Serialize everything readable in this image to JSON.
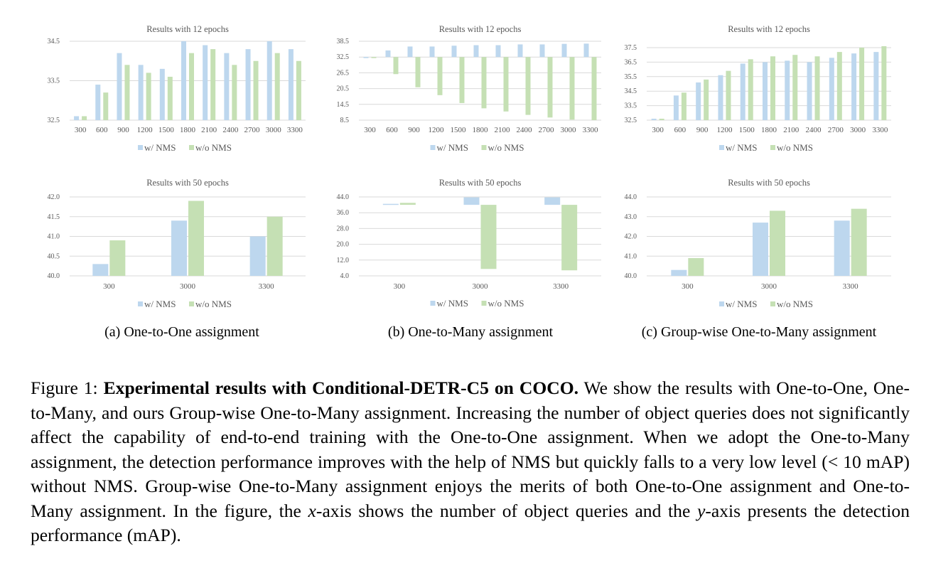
{
  "colors": {
    "nms": "#bdd7ee",
    "no_nms": "#c5e0b4",
    "grid": "#d9d9d9",
    "axis_text": "#595959"
  },
  "chart_data": [
    {
      "id": "a-12",
      "type": "bar",
      "title": "Results with 12 epochs",
      "categories": [
        "300",
        "600",
        "900",
        "1200",
        "1500",
        "1800",
        "2100",
        "2400",
        "2700",
        "3000",
        "3300"
      ],
      "series": [
        {
          "name": "w/ NMS",
          "values": [
            32.6,
            33.4,
            34.2,
            33.9,
            33.8,
            34.5,
            34.4,
            34.2,
            34.3,
            34.5,
            34.3
          ]
        },
        {
          "name": "w/o NMS",
          "values": [
            32.6,
            33.2,
            33.9,
            33.7,
            33.6,
            34.2,
            34.3,
            33.9,
            34.0,
            34.2,
            34.0
          ]
        }
      ],
      "ylim": [
        32.5,
        34.5
      ],
      "yticks": [
        "32.5",
        "33.5",
        "34.5"
      ],
      "legend": [
        "w/ NMS",
        "w/o NMS"
      ]
    },
    {
      "id": "b-12",
      "type": "bar",
      "title": "Results with 12 epochs",
      "categories": [
        "300",
        "600",
        "900",
        "1200",
        "1500",
        "1800",
        "2100",
        "2400",
        "2700",
        "3000",
        "3300"
      ],
      "series": [
        {
          "name": "w/ NMS",
          "values": [
            32.5,
            35.0,
            36.5,
            36.5,
            36.8,
            37.0,
            37.0,
            37.3,
            37.3,
            37.5,
            37.6
          ]
        },
        {
          "name": "w/o NMS",
          "values": [
            32.5,
            26.0,
            21.0,
            18.0,
            15.0,
            13.0,
            11.8,
            10.5,
            9.5,
            8.7,
            8.5
          ]
        }
      ],
      "ylim": [
        8.5,
        38.5
      ],
      "baseline": 32.5,
      "yticks": [
        "8.5",
        "14.5",
        "20.5",
        "26.5",
        "32.5",
        "38.5"
      ],
      "legend": [
        "w/ NMS",
        "w/o NMS"
      ]
    },
    {
      "id": "c-12",
      "type": "bar",
      "title": "Results with 12 epochs",
      "categories": [
        "300",
        "600",
        "900",
        "1200",
        "1500",
        "1800",
        "2100",
        "2400",
        "2700",
        "3000",
        "3300"
      ],
      "series": [
        {
          "name": "w/ NMS",
          "values": [
            32.6,
            34.2,
            35.1,
            35.6,
            36.4,
            36.5,
            36.6,
            36.5,
            36.8,
            37.1,
            37.2
          ]
        },
        {
          "name": "w/o NMS",
          "values": [
            32.6,
            34.4,
            35.3,
            35.9,
            36.7,
            36.9,
            37.0,
            36.9,
            37.2,
            37.5,
            37.6
          ]
        }
      ],
      "ylim": [
        32.5,
        37.5
      ],
      "yticks": [
        "32.5",
        "33.5",
        "34.5",
        "35.5",
        "36.5",
        "37.5"
      ],
      "legend": [
        "w/ NMS",
        "w/o NMS"
      ]
    },
    {
      "id": "a-50",
      "type": "bar",
      "title": "Results with 50 epochs",
      "categories": [
        "300",
        "3000",
        "3300"
      ],
      "series": [
        {
          "name": "w/ NMS",
          "values": [
            40.3,
            41.4,
            41.0
          ]
        },
        {
          "name": "w/o NMS",
          "values": [
            40.9,
            41.9,
            41.5
          ]
        }
      ],
      "ylim": [
        40.0,
        42.0
      ],
      "yticks": [
        "40.0",
        "40.5",
        "41.0",
        "41.5",
        "42.0"
      ],
      "legend": [
        "w/ NMS",
        "w/o NMS"
      ]
    },
    {
      "id": "b-50",
      "type": "bar",
      "title": "Results with 50 epochs",
      "categories": [
        "300",
        "3000",
        "3300"
      ],
      "series": [
        {
          "name": "w/ NMS",
          "values": [
            40.5,
            43.8,
            43.8
          ]
        },
        {
          "name": "w/o NMS",
          "values": [
            41.0,
            7.5,
            6.8
          ]
        }
      ],
      "ylim": [
        4.0,
        44.0
      ],
      "baseline": 40.0,
      "yticks": [
        "4.0",
        "12.0",
        "20.0",
        "28.0",
        "36.0",
        "44.0"
      ],
      "legend": [
        "w/ NMS",
        "w/o NMS"
      ]
    },
    {
      "id": "c-50",
      "type": "bar",
      "title": "Results with 50 epochs",
      "categories": [
        "300",
        "3000",
        "3300"
      ],
      "series": [
        {
          "name": "w/ NMS",
          "values": [
            40.3,
            42.7,
            42.8
          ]
        },
        {
          "name": "w/o NMS",
          "values": [
            40.9,
            43.3,
            43.4
          ]
        }
      ],
      "ylim": [
        40.0,
        44.0
      ],
      "yticks": [
        "40.0",
        "41.0",
        "42.0",
        "43.0",
        "44.0"
      ],
      "legend": [
        "w/ NMS",
        "w/o NMS"
      ]
    }
  ],
  "subcaptions": {
    "a": "(a) One-to-One assignment",
    "b": "(b) One-to-Many assignment",
    "c": "(c) Group-wise One-to-Many assignment"
  },
  "caption": {
    "prefix": "Figure 1: ",
    "bold": "Experimental results with Conditional-DETR-C5 on COCO.",
    "text1": " We show the results with One-to-One, One-to-Many, and ours Group-wise One-to-Many assignment. Increasing the number of object queries does not significantly affect the capability of end-to-end training with the One-to-One assignment. When we adopt the One-to-Many assignment, the detection performance improves with the help of NMS but quickly falls to a very low level (< 10 mAP) without NMS. Group-wise One-to-Many assignment enjoys the merits of both One-to-One assignment and One-to-Many assignment. In the figure, the ",
    "x_var": "x",
    "text2": "-axis shows the number of object queries and the ",
    "y_var": "y",
    "text3": "-axis presents the detection performance (mAP)."
  }
}
